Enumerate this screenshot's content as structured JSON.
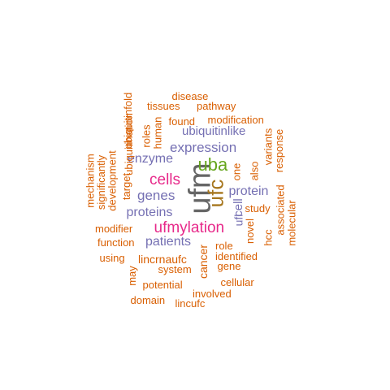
{
  "colors": {
    "orange": "#d95f02",
    "gray": "#666666",
    "green": "#66a61e",
    "magenta": "#e7298a",
    "purple": "#7570b3",
    "olive": "#a6761d",
    "background": "#ffffff"
  },
  "words": [
    {
      "text": "ufm",
      "color": "gray",
      "weight": 10
    },
    {
      "text": "uba",
      "color": "green",
      "weight": 7
    },
    {
      "text": "ufc",
      "color": "olive",
      "weight": 7
    },
    {
      "text": "ufmylation",
      "color": "magenta",
      "weight": 6
    },
    {
      "text": "cells",
      "color": "magenta",
      "weight": 6
    },
    {
      "text": "expression",
      "color": "purple",
      "weight": 5
    },
    {
      "text": "genes",
      "color": "purple",
      "weight": 5
    },
    {
      "text": "proteins",
      "color": "purple",
      "weight": 5
    },
    {
      "text": "protein",
      "color": "purple",
      "weight": 5
    },
    {
      "text": "enzyme",
      "color": "purple",
      "weight": 5
    },
    {
      "text": "patients",
      "color": "purple",
      "weight": 5
    },
    {
      "text": "ubiquitinlike",
      "color": "purple",
      "weight": 4
    },
    {
      "text": "ufl",
      "color": "purple",
      "weight": 4
    },
    {
      "text": "cell",
      "color": "purple",
      "weight": 4
    },
    {
      "text": "lincrnaufc",
      "color": "orange",
      "weight": 4
    },
    {
      "text": "cancer",
      "color": "orange",
      "weight": 4
    },
    {
      "text": "disease",
      "color": "orange",
      "weight": 3
    },
    {
      "text": "tissues",
      "color": "orange",
      "weight": 3
    },
    {
      "text": "pathway",
      "color": "orange",
      "weight": 3
    },
    {
      "text": "found",
      "color": "orange",
      "weight": 3
    },
    {
      "text": "modification",
      "color": "orange",
      "weight": 3
    },
    {
      "text": "ubiquitinfold",
      "color": "orange",
      "weight": 3
    },
    {
      "text": "roles",
      "color": "orange",
      "weight": 3
    },
    {
      "text": "human",
      "color": "orange",
      "weight": 3
    },
    {
      "text": "ubiquitination",
      "color": "orange",
      "weight": 3
    },
    {
      "text": "development",
      "color": "orange",
      "weight": 3
    },
    {
      "text": "significantly",
      "color": "orange",
      "weight": 3
    },
    {
      "text": "mechanism",
      "color": "orange",
      "weight": 3
    },
    {
      "text": "target",
      "color": "orange",
      "weight": 3
    },
    {
      "text": "variants",
      "color": "orange",
      "weight": 3
    },
    {
      "text": "response",
      "color": "orange",
      "weight": 3
    },
    {
      "text": "one",
      "color": "orange",
      "weight": 3
    },
    {
      "text": "also",
      "color": "orange",
      "weight": 3
    },
    {
      "text": "associated",
      "color": "orange",
      "weight": 3
    },
    {
      "text": "molecular",
      "color": "orange",
      "weight": 3
    },
    {
      "text": "study",
      "color": "orange",
      "weight": 3
    },
    {
      "text": "novel",
      "color": "orange",
      "weight": 3
    },
    {
      "text": "hcc",
      "color": "orange",
      "weight": 3
    },
    {
      "text": "role",
      "color": "orange",
      "weight": 3
    },
    {
      "text": "identified",
      "color": "orange",
      "weight": 3
    },
    {
      "text": "gene",
      "color": "orange",
      "weight": 3
    },
    {
      "text": "modifier",
      "color": "orange",
      "weight": 3
    },
    {
      "text": "function",
      "color": "orange",
      "weight": 3
    },
    {
      "text": "using",
      "color": "orange",
      "weight": 3
    },
    {
      "text": "system",
      "color": "orange",
      "weight": 3
    },
    {
      "text": "may",
      "color": "orange",
      "weight": 3
    },
    {
      "text": "potential",
      "color": "orange",
      "weight": 3
    },
    {
      "text": "cellular",
      "color": "orange",
      "weight": 3
    },
    {
      "text": "involved",
      "color": "orange",
      "weight": 3
    },
    {
      "text": "domain",
      "color": "orange",
      "weight": 3
    },
    {
      "text": "lincufc",
      "color": "orange",
      "weight": 3
    }
  ]
}
